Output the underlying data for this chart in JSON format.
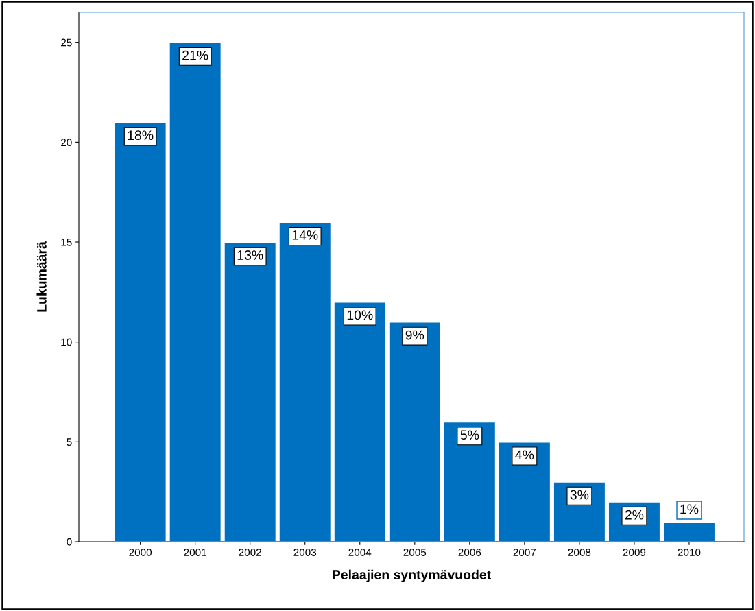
{
  "chart_data": {
    "type": "bar",
    "xlabel": "Pelaajien syntymävuodet",
    "ylabel": "Lukumäärä",
    "categories": [
      "2000",
      "2001",
      "2002",
      "2003",
      "2004",
      "2005",
      "2006",
      "2007",
      "2008",
      "2009",
      "2010"
    ],
    "values": [
      21,
      25,
      15,
      16,
      12,
      11,
      6,
      5,
      3,
      2,
      1
    ],
    "annotations": [
      {
        "text": "18%",
        "x": "2000",
        "y": 21
      },
      {
        "text": "21%",
        "x": "2001",
        "y": 25
      },
      {
        "text": "13%",
        "x": "2002",
        "y": 15
      },
      {
        "text": "14%",
        "x": "2003",
        "y": 16
      },
      {
        "text": "10%",
        "x": "2004",
        "y": 12
      },
      {
        "text": "9%",
        "x": "2005",
        "y": 11
      },
      {
        "text": "5%",
        "x": "2006",
        "y": 6
      },
      {
        "text": "4%",
        "x": "2007",
        "y": 5
      },
      {
        "text": "3%",
        "x": "2008",
        "y": 3
      },
      {
        "text": "2%",
        "x": "2009",
        "y": 2
      },
      {
        "text": "1%",
        "x": "2010",
        "y": 1
      }
    ],
    "color": "#0070c0",
    "ylim": [
      0,
      26.5
    ],
    "yticks": [
      0,
      5,
      10,
      15,
      20,
      25
    ],
    "grid": false
  }
}
